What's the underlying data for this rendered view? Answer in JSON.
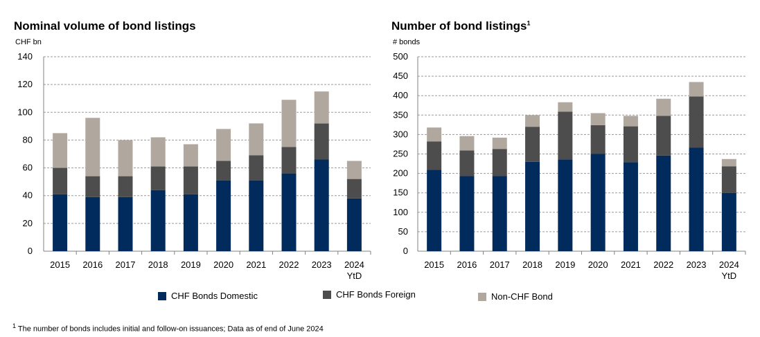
{
  "colors": {
    "domestic": "#002b5c",
    "foreign": "#4d4d4d",
    "nonchf": "#b0a79f"
  },
  "legend": [
    "CHF Bonds Domestic",
    "CHF Bonds Foreign",
    "Non-CHF Bond"
  ],
  "footnote": {
    "mark": "1",
    "text": "The number of bonds includes initial and follow-on issuances; Data as of end of June 2024"
  },
  "chart_data": [
    {
      "type": "bar",
      "stacked": true,
      "title": "Nominal volume of bond listings",
      "ylabel": "CHF bn",
      "ylim": [
        0,
        140
      ],
      "yticks": [
        0,
        20,
        40,
        60,
        80,
        100,
        120,
        140
      ],
      "categories": [
        "2015",
        "2016",
        "2017",
        "2018",
        "2019",
        "2020",
        "2021",
        "2022",
        "2023",
        "2024\nYtD"
      ],
      "grid": true,
      "series": [
        {
          "name": "CHF Bonds Domestic",
          "values": [
            41,
            39,
            39,
            44,
            41,
            51,
            51,
            56,
            66,
            38
          ]
        },
        {
          "name": "CHF Bonds Foreign",
          "values": [
            19,
            15,
            15,
            17,
            20,
            14,
            18,
            19,
            26,
            14
          ]
        },
        {
          "name": "Non-CHF Bond",
          "values": [
            25,
            42,
            26,
            21,
            16,
            23,
            23,
            34,
            23,
            13
          ]
        }
      ]
    },
    {
      "type": "bar",
      "stacked": true,
      "title": "Number of bond listings",
      "title_sup": "1",
      "ylabel": "# bonds",
      "ylim": [
        0,
        500
      ],
      "yticks": [
        0,
        50,
        100,
        150,
        200,
        250,
        300,
        350,
        400,
        450,
        500
      ],
      "categories": [
        "2015",
        "2016",
        "2017",
        "2018",
        "2019",
        "2020",
        "2021",
        "2022",
        "2023",
        "2024\nYtD"
      ],
      "grid": true,
      "series": [
        {
          "name": "CHF Bonds Domestic",
          "values": [
            209,
            193,
            193,
            230,
            236,
            250,
            229,
            246,
            266,
            150
          ]
        },
        {
          "name": "CHF Bonds Foreign",
          "values": [
            73,
            66,
            70,
            90,
            123,
            74,
            92,
            102,
            132,
            68
          ]
        },
        {
          "name": "Non-CHF Bond",
          "values": [
            36,
            37,
            29,
            30,
            24,
            31,
            27,
            44,
            37,
            19
          ]
        }
      ]
    }
  ]
}
